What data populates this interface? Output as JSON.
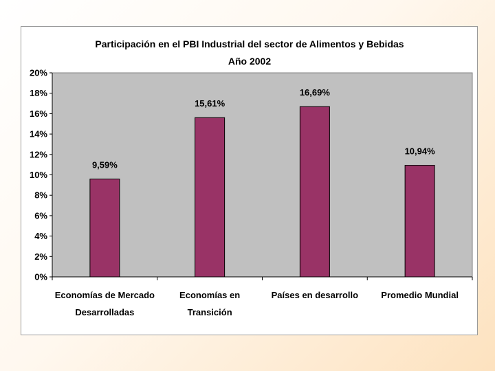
{
  "chart_data": {
    "type": "bar",
    "title": "Participación en el PBI Industrial del sector de Alimentos y Bebidas",
    "subtitle": "Año 2002",
    "categories": [
      [
        "Economías de Mercado",
        "Desarrolladas"
      ],
      [
        "Economías en",
        "Transición"
      ],
      [
        "Países en desarrollo"
      ],
      [
        "Promedio Mundial"
      ]
    ],
    "values": [
      9.59,
      15.61,
      16.69,
      10.94
    ],
    "data_labels": [
      "9,59%",
      "15,61%",
      "16,69%",
      "10,94%"
    ],
    "ylim": [
      0,
      20
    ],
    "yticks": [
      "0%",
      "2%",
      "4%",
      "6%",
      "8%",
      "10%",
      "12%",
      "14%",
      "16%",
      "18%",
      "20%"
    ],
    "xlabel": "",
    "ylabel": "",
    "grid": false,
    "legend": "none",
    "bar_color": "#993366",
    "plot_background": "#c0c0c0"
  }
}
